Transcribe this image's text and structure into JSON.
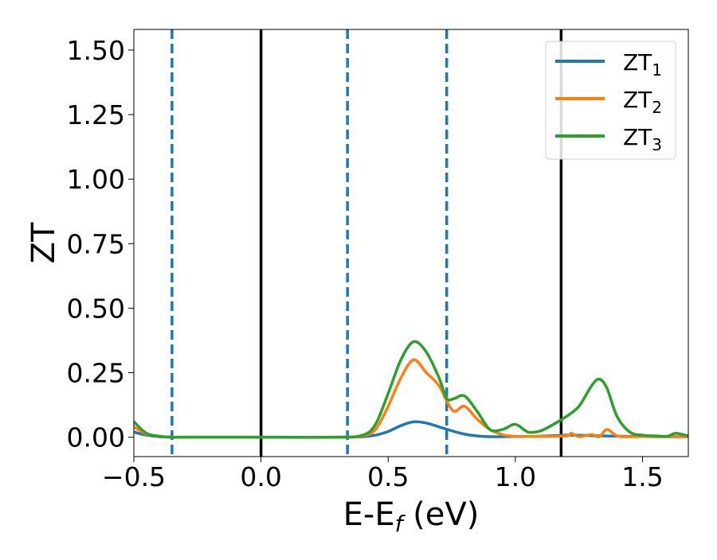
{
  "chart_data": {
    "type": "line",
    "xlabel": "E-E",
    "xlabel_sub": "f",
    "xlabel_unit": " (eV)",
    "ylabel": "ZT",
    "xlim": [
      -0.5,
      1.68
    ],
    "ylim": [
      -0.075,
      1.58
    ],
    "xticks": [
      -0.5,
      0.0,
      0.5,
      1.0,
      1.5
    ],
    "xtick_labels": [
      "−0.5",
      "0.0",
      "0.5",
      "1.0",
      "1.5"
    ],
    "yticks": [
      0.0,
      0.25,
      0.5,
      0.75,
      1.0,
      1.25,
      1.5
    ],
    "ytick_labels": [
      "0.00",
      "0.25",
      "0.50",
      "0.75",
      "1.00",
      "1.25",
      "1.50"
    ],
    "grid": false,
    "legend_position": "top-right",
    "vlines_solid": [
      0.0,
      1.18
    ],
    "vlines_dashed": [
      -0.35,
      0.34,
      0.73
    ],
    "vline_solid_color": "#000000",
    "vline_dashed_color": "#1f77b4",
    "series": [
      {
        "name": "ZT",
        "name_sub": "1",
        "color": "#1f77b4",
        "x": [
          -0.5,
          -0.45,
          -0.4,
          -0.35,
          -0.3,
          0.0,
          0.3,
          0.4,
          0.45,
          0.5,
          0.55,
          0.6,
          0.65,
          0.7,
          0.75,
          0.8,
          0.85,
          0.9,
          1.0,
          1.1,
          1.2,
          1.3,
          1.4,
          1.5,
          1.6,
          1.68
        ],
        "y": [
          0.02,
          0.008,
          0.002,
          0.0,
          0.0,
          0.0,
          0.0,
          0.002,
          0.008,
          0.022,
          0.045,
          0.06,
          0.055,
          0.04,
          0.025,
          0.012,
          0.005,
          0.002,
          0.003,
          0.004,
          0.008,
          0.006,
          0.004,
          0.003,
          0.002,
          0.002
        ]
      },
      {
        "name": "ZT",
        "name_sub": "2",
        "color": "#ff7f0e",
        "x": [
          -0.5,
          -0.45,
          -0.4,
          -0.35,
          -0.3,
          0.0,
          0.3,
          0.4,
          0.45,
          0.5,
          0.55,
          0.6,
          0.65,
          0.7,
          0.73,
          0.76,
          0.8,
          0.85,
          0.9,
          0.95,
          1.0,
          1.05,
          1.1,
          1.2,
          1.22,
          1.25,
          1.3,
          1.33,
          1.36,
          1.4,
          1.45,
          1.5,
          1.55,
          1.6,
          1.68
        ],
        "y": [
          0.04,
          0.012,
          0.003,
          0.0,
          0.0,
          0.0,
          0.0,
          0.005,
          0.03,
          0.12,
          0.23,
          0.3,
          0.25,
          0.2,
          0.14,
          0.1,
          0.12,
          0.07,
          0.03,
          0.01,
          0.003,
          0.003,
          0.003,
          0.005,
          0.015,
          0.002,
          0.01,
          0.002,
          0.03,
          0.005,
          0.002,
          0.003,
          0.002,
          0.003,
          0.002
        ]
      },
      {
        "name": "ZT",
        "name_sub": "3",
        "color": "#2ca02c",
        "x": [
          -0.5,
          -0.45,
          -0.4,
          -0.35,
          -0.3,
          0.0,
          0.3,
          0.4,
          0.45,
          0.5,
          0.55,
          0.6,
          0.65,
          0.7,
          0.73,
          0.76,
          0.8,
          0.85,
          0.9,
          0.95,
          1.0,
          1.05,
          1.1,
          1.15,
          1.2,
          1.25,
          1.3,
          1.33,
          1.36,
          1.4,
          1.45,
          1.5,
          1.55,
          1.6,
          1.63,
          1.68
        ],
        "y": [
          0.06,
          0.015,
          0.004,
          0.0,
          0.0,
          0.0,
          0.0,
          0.008,
          0.05,
          0.17,
          0.3,
          0.37,
          0.33,
          0.23,
          0.15,
          0.15,
          0.16,
          0.1,
          0.03,
          0.03,
          0.05,
          0.02,
          0.025,
          0.05,
          0.08,
          0.12,
          0.2,
          0.225,
          0.19,
          0.08,
          0.02,
          0.008,
          0.005,
          0.004,
          0.015,
          0.005
        ]
      }
    ]
  }
}
